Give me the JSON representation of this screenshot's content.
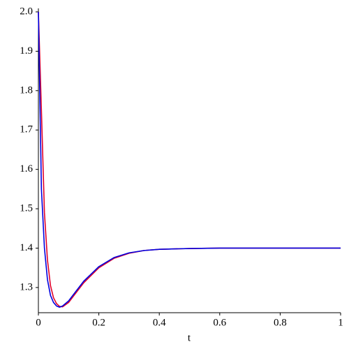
{
  "chart_data": {
    "type": "line",
    "x_label": "t",
    "x": [
      0,
      0.01,
      0.02,
      0.03,
      0.04,
      0.05,
      0.06,
      0.07,
      0.08,
      0.1,
      0.12,
      0.15,
      0.2,
      0.25,
      0.3,
      0.35,
      0.4,
      0.5,
      0.6,
      0.7,
      0.8,
      0.9,
      1.0
    ],
    "series": [
      {
        "color": "#e0002a",
        "values": [
          2.0,
          1.75,
          1.49,
          1.37,
          1.305,
          1.274,
          1.259,
          1.252,
          1.251,
          1.262,
          1.282,
          1.312,
          1.35,
          1.374,
          1.387,
          1.394,
          1.397,
          1.399,
          1.4,
          1.4,
          1.4,
          1.4,
          1.4
        ]
      },
      {
        "color": "#0000e0",
        "values": [
          2.0,
          1.55,
          1.4,
          1.32,
          1.28,
          1.262,
          1.253,
          1.25,
          1.253,
          1.266,
          1.286,
          1.316,
          1.353,
          1.376,
          1.388,
          1.394,
          1.397,
          1.399,
          1.4,
          1.4,
          1.4,
          1.4,
          1.4
        ]
      }
    ],
    "xlim": [
      0,
      1
    ],
    "ylim": [
      1.236,
      2.0
    ],
    "xticks": [
      0,
      0.2,
      0.4,
      0.6,
      0.8,
      1
    ],
    "yticks": [
      1.3,
      1.4,
      1.5,
      1.6,
      1.7,
      1.8,
      1.9,
      {
        "value": 2.0,
        "label": "2.0"
      }
    ]
  }
}
